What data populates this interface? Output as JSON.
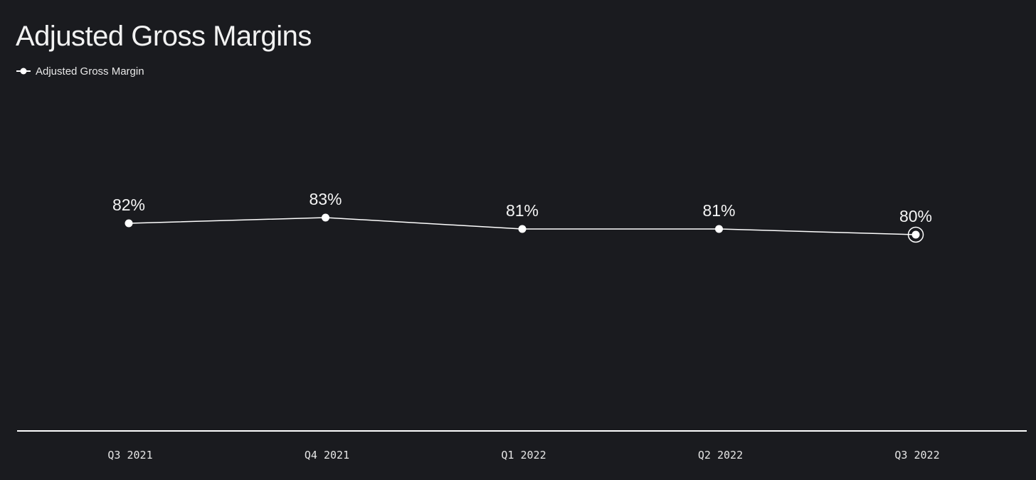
{
  "chart_data": {
    "type": "line",
    "title": "Adjusted Gross Margins",
    "categories": [
      "Q3 2021",
      "Q4 2021",
      "Q1 2022",
      "Q2 2022",
      "Q3 2022"
    ],
    "series": [
      {
        "name": "Adjusted Gross Margin",
        "values": [
          82,
          83,
          81,
          81,
          80
        ],
        "labels": [
          "82%",
          "83%",
          "81%",
          "81%",
          "80%"
        ]
      }
    ],
    "highlighted_point": "Q3 2022",
    "legend_position": "top-left",
    "grid": false,
    "y_axis_visible": false,
    "xlabel": "",
    "ylabel": ""
  },
  "colors": {
    "background": "#1a1b1f",
    "series": "#ffffff",
    "text": "#f2f2f2"
  }
}
